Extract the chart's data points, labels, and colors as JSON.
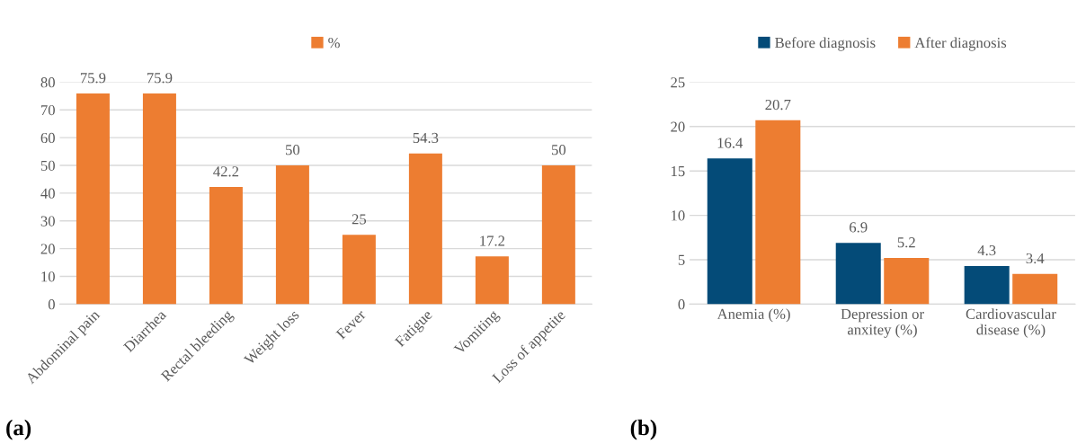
{
  "chart_data": [
    {
      "type": "bar",
      "categories": [
        "Abdominal pain",
        "Diarrhea",
        "Rectal bleeding",
        "Weight loss",
        "Fever",
        "Fatigue",
        "Vomiting",
        "Loss of appetite"
      ],
      "series": [
        {
          "name": "%",
          "color": "#ed7d31",
          "values": [
            75.9,
            75.9,
            42.2,
            50,
            25,
            54.3,
            17.2,
            50
          ]
        }
      ],
      "ylim": [
        0,
        80
      ],
      "yticks": [
        0,
        10,
        20,
        30,
        40,
        50,
        60,
        70,
        80
      ],
      "grid": "y",
      "legend": "top",
      "data_labels": true,
      "annotations": [
        "(a)"
      ]
    },
    {
      "type": "bar",
      "categories": [
        "Anemia (%)",
        "Depression or\nanxitey (%)",
        "Cardiovascular\ndisease (%)"
      ],
      "series": [
        {
          "name": "Before diagnosis",
          "color": "#044b78",
          "values": [
            16.4,
            6.9,
            4.3
          ]
        },
        {
          "name": "After diagnosis",
          "color": "#ed7d31",
          "values": [
            20.7,
            5.2,
            3.4
          ]
        }
      ],
      "ylim": [
        0,
        25
      ],
      "yticks": [
        0,
        5,
        10,
        15,
        20,
        25
      ],
      "grid": "y",
      "legend": "top",
      "data_labels": true,
      "annotations": [
        "(b)"
      ]
    }
  ]
}
